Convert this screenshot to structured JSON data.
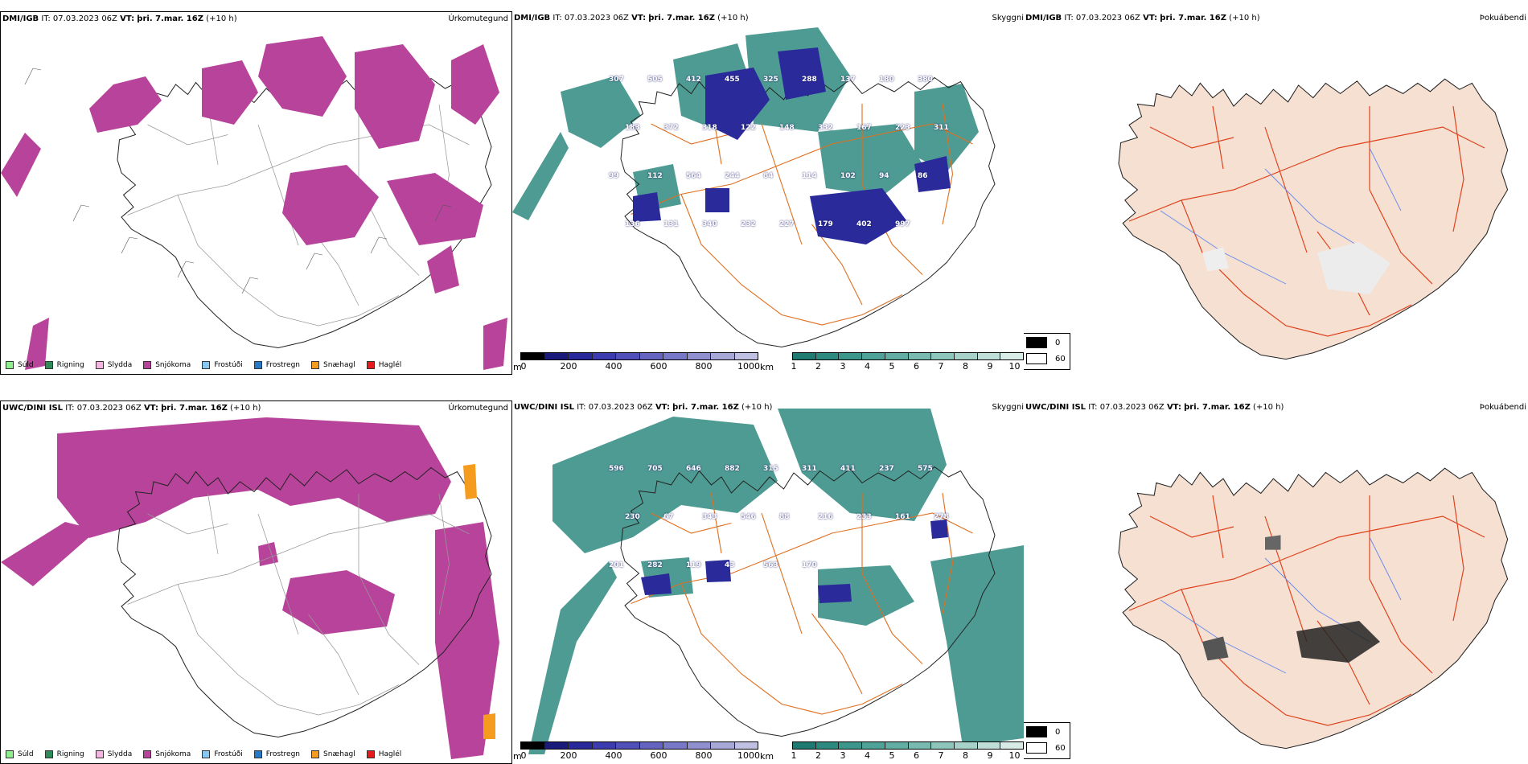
{
  "rows": [
    {
      "model": "DMI/IGB",
      "it_text": "IT: 07.03.2023 06Z",
      "vt_label": "VT:",
      "vt_value": "þri. 7.mar. 16Z",
      "lead": "(+10 h)",
      "vis_labels": [
        "307",
        "505",
        "412",
        "455",
        "325",
        "288",
        "137",
        "180",
        "380",
        "183",
        "372",
        "318",
        "122",
        "148",
        "332",
        "167",
        "223",
        "311",
        "99",
        "112",
        "564",
        "244",
        "84",
        "114",
        "102",
        "94",
        "86",
        "136",
        "131",
        "340",
        "232",
        "227",
        "179",
        "402",
        "997"
      ]
    },
    {
      "model": "UWC/DINI ISL",
      "it_text": "IT: 07.03.2023 06Z",
      "vt_label": "VT:",
      "vt_value": "þri. 7.mar. 16Z",
      "lead": "(+10 h)",
      "vis_labels": [
        "596",
        "705",
        "646",
        "882",
        "315",
        "311",
        "411",
        "237",
        "575",
        "230",
        "67",
        "343",
        "546",
        "88",
        "216",
        "233",
        "161",
        "278",
        "201",
        "282",
        "119",
        "43",
        "563",
        "170"
      ]
    }
  ],
  "panel_titles": {
    "precip_type": "Úrkomutegund",
    "visibility": "Skyggni",
    "cloud": "Þokuábendi"
  },
  "precip_legend": [
    {
      "label": "Súld",
      "color": "#90ee90"
    },
    {
      "label": "Rigning",
      "color": "#2e8b57"
    },
    {
      "label": "Slydda",
      "color": "#f4b6e0"
    },
    {
      "label": "Snjókoma",
      "color": "#b8439a"
    },
    {
      "label": "Frostúði",
      "color": "#87c8f5"
    },
    {
      "label": "Frostregn",
      "color": "#2878c8"
    },
    {
      "label": "Snæhagl",
      "color": "#f59b1e"
    },
    {
      "label": "Haglél",
      "color": "#e41a1c"
    }
  ],
  "height_bar": {
    "unit": "m",
    "ticks": [
      "0",
      "200",
      "400",
      "600",
      "800",
      "1000"
    ],
    "colors": [
      "#000000",
      "#1a1a7a",
      "#28289a",
      "#3c3cb0",
      "#5050b8",
      "#6464c0",
      "#7878c8",
      "#9090d0",
      "#a8a8d8",
      "#c0c0e2"
    ]
  },
  "vis_bar": {
    "unit": "km",
    "ticks": [
      "1",
      "2",
      "3",
      "4",
      "5",
      "6",
      "7",
      "8",
      "9",
      "10"
    ],
    "colors": [
      "#1f7a72",
      "#2d8a80",
      "#3c968c",
      "#4fa298",
      "#62aea4",
      "#78bab0",
      "#8ec6bc",
      "#a6d2ca",
      "#bfded8",
      "#d8ebe7"
    ]
  },
  "cloud_key": {
    "items": [
      {
        "label": "0",
        "color": "#000000"
      },
      {
        "label": "60",
        "color": "#ffffff"
      }
    ]
  },
  "colors": {
    "snow": "#b8439a",
    "sleet_orange": "#f59b1e",
    "teal": "#2f8a80",
    "navy": "#2a2a9a",
    "land": "#f5e0d2",
    "roads": "#e07020",
    "rivers": "#6688ee"
  }
}
